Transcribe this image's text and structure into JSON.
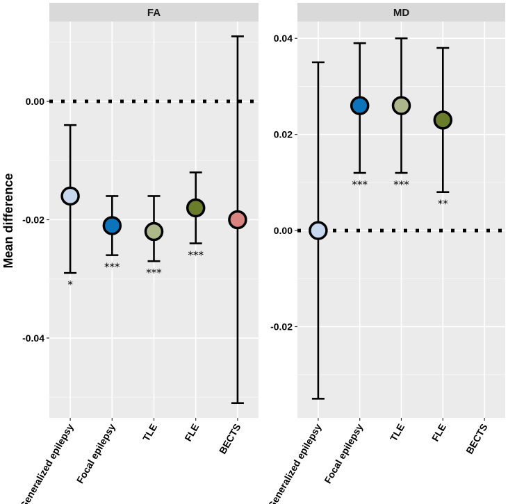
{
  "chart_data": {
    "type": "scatter",
    "ylabel": "Mean difference",
    "categories": [
      "Generalized epilepsy",
      "Focal epilepsy",
      "TLE",
      "FLE",
      "BECTS"
    ],
    "colors": {
      "Generalized epilepsy": "#c6d7ee",
      "Focal epilepsy": "#0b74bb",
      "TLE": "#adb88a",
      "FLE": "#6a7d2b",
      "BECTS": "#d98481"
    },
    "panels": [
      {
        "title": "FA",
        "ylim": [
          -0.0535,
          0.0135
        ],
        "yticks": [
          0.0,
          -0.02,
          -0.04
        ],
        "ytick_labels": [
          "0.00",
          "-0.02",
          "-0.04"
        ],
        "reference_line": 0.0,
        "points": [
          {
            "category": "Generalized epilepsy",
            "mean": -0.016,
            "lower": -0.029,
            "upper": -0.004,
            "significance": "*"
          },
          {
            "category": "Focal epilepsy",
            "mean": -0.021,
            "lower": -0.026,
            "upper": -0.016,
            "significance": "***"
          },
          {
            "category": "TLE",
            "mean": -0.022,
            "lower": -0.027,
            "upper": -0.016,
            "significance": "***"
          },
          {
            "category": "FLE",
            "mean": -0.018,
            "lower": -0.024,
            "upper": -0.012,
            "significance": "***"
          },
          {
            "category": "BECTS",
            "mean": -0.02,
            "lower": -0.051,
            "upper": 0.011,
            "significance": ""
          }
        ]
      },
      {
        "title": "MD",
        "ylim": [
          -0.039,
          0.0435
        ],
        "yticks": [
          0.04,
          0.02,
          0.0,
          -0.02
        ],
        "ytick_labels": [
          "0.04",
          "0.02",
          "0.00",
          "-0.02"
        ],
        "reference_line": 0.0,
        "points": [
          {
            "category": "Generalized epilepsy",
            "mean": 0.0,
            "lower": -0.035,
            "upper": 0.035,
            "significance": ""
          },
          {
            "category": "Focal epilepsy",
            "mean": 0.026,
            "lower": 0.012,
            "upper": 0.039,
            "significance": "***"
          },
          {
            "category": "TLE",
            "mean": 0.026,
            "lower": 0.012,
            "upper": 0.04,
            "significance": "***"
          },
          {
            "category": "FLE",
            "mean": 0.023,
            "lower": 0.008,
            "upper": 0.038,
            "significance": "**"
          }
        ]
      }
    ]
  }
}
